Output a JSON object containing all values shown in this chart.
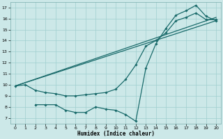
{
  "xlabel": "Humidex (Indice chaleur)",
  "xlim": [
    -0.5,
    20.5
  ],
  "ylim": [
    6.5,
    17.5
  ],
  "xticks": [
    0,
    1,
    2,
    3,
    4,
    5,
    6,
    7,
    8,
    9,
    10,
    11,
    12,
    13,
    14,
    15,
    16,
    17,
    18,
    19,
    20
  ],
  "yticks": [
    7,
    8,
    9,
    10,
    11,
    12,
    13,
    14,
    15,
    16,
    17
  ],
  "bg_color": "#cce8e8",
  "grid_color": "#9fcfcf",
  "line_color": "#1a6b6b",
  "series1_x": [
    0,
    1,
    2,
    3,
    4,
    5,
    6,
    7,
    8,
    9,
    10,
    11,
    12,
    13,
    14,
    15,
    16,
    17,
    18,
    19,
    20
  ],
  "series1_y": [
    9.9,
    10.0,
    9.5,
    9.3,
    9.2,
    9.0,
    9.0,
    9.1,
    9.2,
    9.3,
    9.6,
    10.5,
    11.8,
    13.5,
    14.0,
    14.7,
    15.8,
    16.1,
    16.5,
    15.9,
    15.9
  ],
  "series2_x": [
    2,
    3,
    4,
    5,
    6,
    7,
    8,
    9,
    10,
    11,
    12,
    13,
    14,
    15,
    16,
    17,
    18,
    19,
    20
  ],
  "series2_y": [
    8.2,
    8.2,
    8.2,
    7.7,
    7.5,
    7.5,
    8.0,
    7.8,
    7.7,
    7.3,
    6.7,
    11.5,
    13.7,
    15.1,
    16.3,
    16.7,
    17.2,
    16.2,
    15.8
  ],
  "series3_x": [
    0,
    20
  ],
  "series3_y": [
    9.9,
    15.8
  ],
  "series4_x": [
    0,
    20
  ],
  "series4_y": [
    9.9,
    16.1
  ]
}
